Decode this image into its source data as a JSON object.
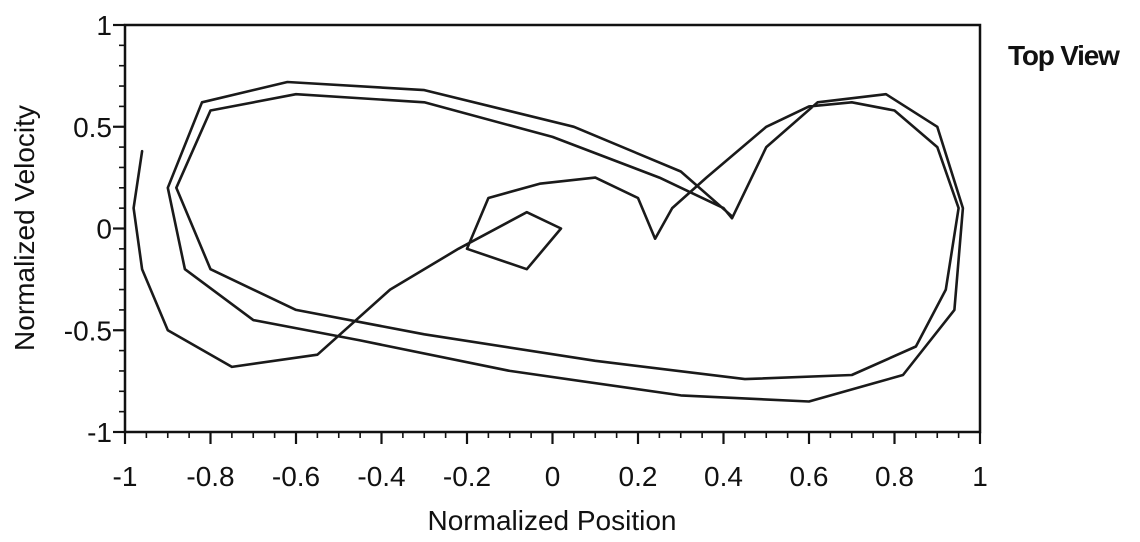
{
  "annotation": "Top View",
  "chart_data": {
    "type": "line",
    "title": "",
    "xlabel": "Normalized Position",
    "ylabel": "Normalized Velocity",
    "xlim": [
      -1,
      1
    ],
    "ylim": [
      -1,
      1
    ],
    "x_ticks": [
      "-1",
      "-0.8",
      "-0.6",
      "-0.4",
      "-0.2",
      "0",
      "0.2",
      "0.4",
      "0.6",
      "0.8",
      "1"
    ],
    "y_ticks": [
      "1",
      "0.5",
      "0",
      "-0.5",
      "-1"
    ],
    "grid": false,
    "legend": "none",
    "line_color": "#1a1a1a",
    "series": [
      {
        "points": [
          [
            -0.96,
            0.38
          ],
          [
            -0.98,
            0.1
          ],
          [
            -0.96,
            -0.2
          ],
          [
            -0.9,
            -0.5
          ],
          [
            -0.75,
            -0.68
          ],
          [
            -0.55,
            -0.62
          ],
          [
            -0.38,
            -0.3
          ],
          [
            -0.22,
            -0.1
          ],
          [
            -0.06,
            0.08
          ],
          [
            0.02,
            0.0
          ],
          [
            -0.06,
            -0.2
          ],
          [
            -0.2,
            -0.1
          ],
          [
            -0.15,
            0.15
          ],
          [
            -0.03,
            0.22
          ],
          [
            0.1,
            0.25
          ],
          [
            0.2,
            0.15
          ],
          [
            0.24,
            -0.05
          ],
          [
            0.28,
            0.1
          ],
          [
            0.36,
            0.25
          ],
          [
            0.5,
            0.5
          ],
          [
            0.6,
            0.6
          ],
          [
            0.7,
            0.62
          ],
          [
            0.8,
            0.58
          ],
          [
            0.9,
            0.4
          ],
          [
            0.95,
            0.1
          ],
          [
            0.92,
            -0.3
          ],
          [
            0.85,
            -0.58
          ],
          [
            0.7,
            -0.72
          ],
          [
            0.45,
            -0.74
          ],
          [
            0.1,
            -0.65
          ],
          [
            -0.3,
            -0.52
          ],
          [
            -0.6,
            -0.4
          ],
          [
            -0.8,
            -0.2
          ],
          [
            -0.88,
            0.2
          ],
          [
            -0.8,
            0.58
          ],
          [
            -0.6,
            0.66
          ],
          [
            -0.3,
            0.62
          ],
          [
            0.0,
            0.45
          ],
          [
            0.25,
            0.25
          ],
          [
            0.4,
            0.1
          ],
          [
            0.42,
            0.05
          ],
          [
            0.5,
            0.4
          ],
          [
            0.62,
            0.62
          ],
          [
            0.78,
            0.66
          ],
          [
            0.9,
            0.5
          ],
          [
            0.96,
            0.1
          ],
          [
            0.94,
            -0.4
          ],
          [
            0.82,
            -0.72
          ],
          [
            0.6,
            -0.85
          ],
          [
            0.3,
            -0.82
          ],
          [
            -0.1,
            -0.7
          ],
          [
            -0.45,
            -0.55
          ],
          [
            -0.7,
            -0.45
          ],
          [
            -0.86,
            -0.2
          ],
          [
            -0.9,
            0.2
          ],
          [
            -0.82,
            0.62
          ],
          [
            -0.62,
            0.72
          ],
          [
            -0.3,
            0.68
          ],
          [
            0.05,
            0.5
          ],
          [
            0.3,
            0.28
          ],
          [
            0.42,
            0.06
          ]
        ]
      }
    ]
  }
}
